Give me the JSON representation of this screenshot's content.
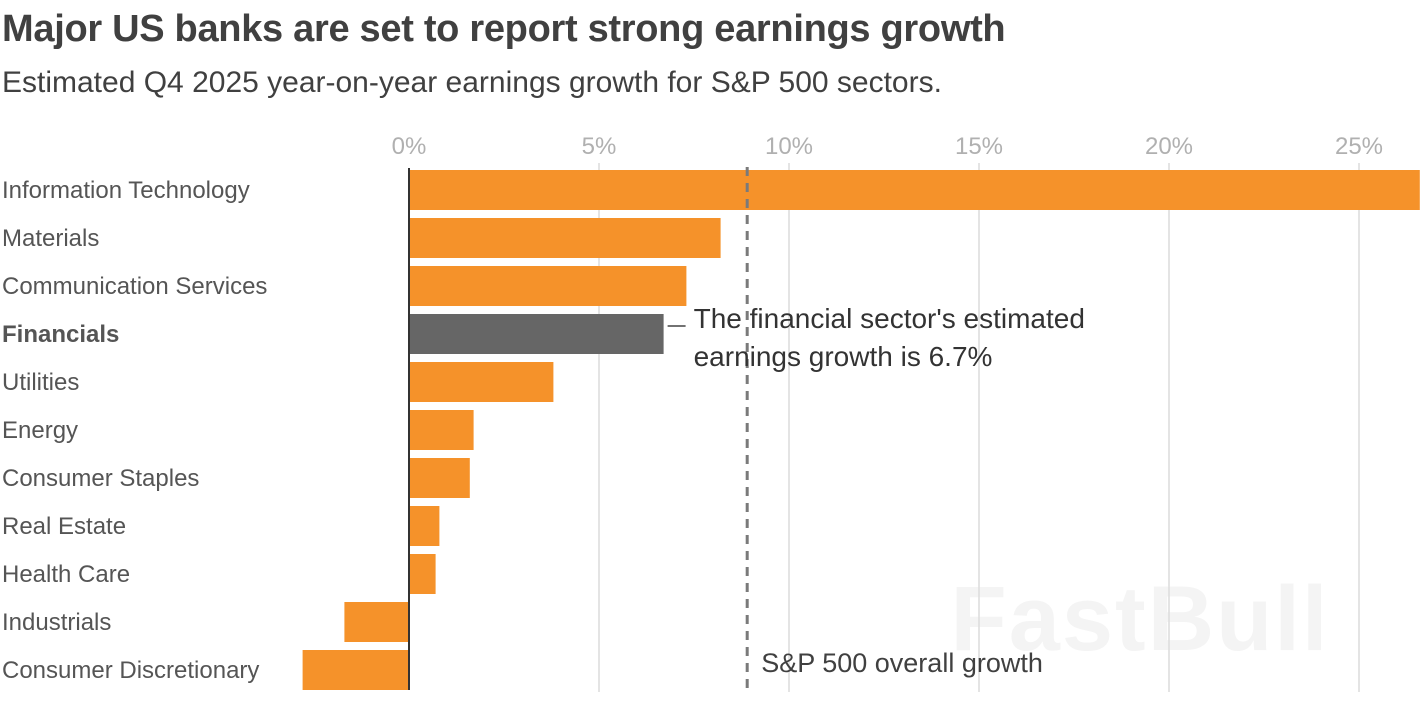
{
  "chart_data": {
    "type": "bar",
    "orientation": "horizontal",
    "title": "Major US banks are set to report strong earnings growth",
    "subtitle": "Estimated Q4 2025 year-on-year earnings growth for S&P 500 sectors.",
    "xlabel": "",
    "ylabel": "",
    "xlim": [
      -2.8,
      26.6
    ],
    "x_ticks": [
      0,
      5,
      10,
      15,
      20,
      25
    ],
    "x_tick_labels": [
      "0%",
      "5%",
      "10%",
      "15%",
      "20%",
      "25%"
    ],
    "grid": true,
    "categories": [
      "Information Technology",
      "Materials",
      "Communication Services",
      "Financials",
      "Utilities",
      "Energy",
      "Consumer Staples",
      "Real Estate",
      "Health Care",
      "Industrials",
      "Consumer Discretionary"
    ],
    "values": [
      26.6,
      8.2,
      7.3,
      6.7,
      3.8,
      1.7,
      1.6,
      0.8,
      0.7,
      -1.7,
      -2.8
    ],
    "highlight_category": "Financials",
    "reference_line": {
      "value": 8.9,
      "label": "S&P 500 overall growth"
    },
    "annotation": {
      "category": "Financials",
      "lines": [
        "The financial sector's estimated",
        "earnings growth is 6.7%"
      ]
    },
    "colors": {
      "bar": "#f5922a",
      "highlight_bar": "#666666",
      "gridline": "#dcdcdc",
      "zero_line": "#333333",
      "reference_line": "#7a7a7a"
    }
  },
  "watermark": "FastBull"
}
